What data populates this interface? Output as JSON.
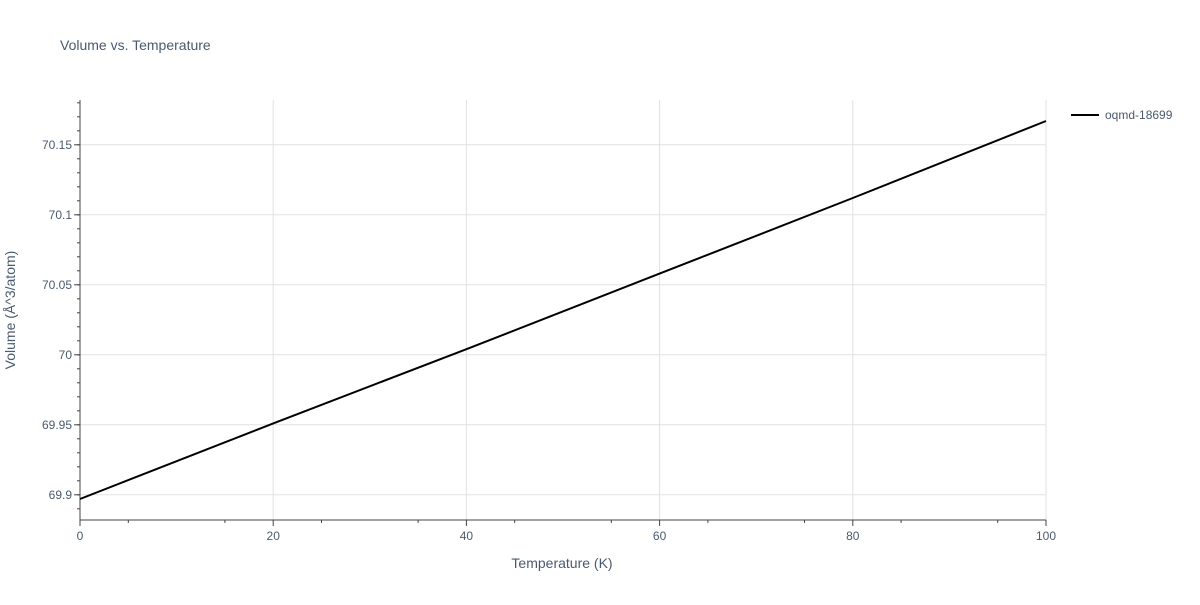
{
  "chart_data": {
    "type": "line",
    "title": "Volume vs. Temperature",
    "xlabel": "Temperature (K)",
    "ylabel": "Volume (Å^3/atom)",
    "xlim": [
      0,
      100
    ],
    "ylim": [
      69.882,
      70.182
    ],
    "x_ticks": [
      0,
      20,
      40,
      60,
      80,
      100
    ],
    "x_tick_labels": [
      "0",
      "20",
      "40",
      "60",
      "80",
      "100"
    ],
    "y_ticks": [
      69.9,
      69.95,
      70,
      70.05,
      70.1,
      70.15
    ],
    "y_tick_labels": [
      "69.9",
      "69.95",
      "70",
      "70.05",
      "70.1",
      "70.15"
    ],
    "grid": true,
    "legend_position": "top-right",
    "series": [
      {
        "name": "oqmd-18699",
        "color": "#000000",
        "x": [
          0,
          20,
          40,
          60,
          80,
          100
        ],
        "y": [
          69.897,
          69.951,
          70.004,
          70.058,
          70.112,
          70.167
        ]
      }
    ]
  }
}
